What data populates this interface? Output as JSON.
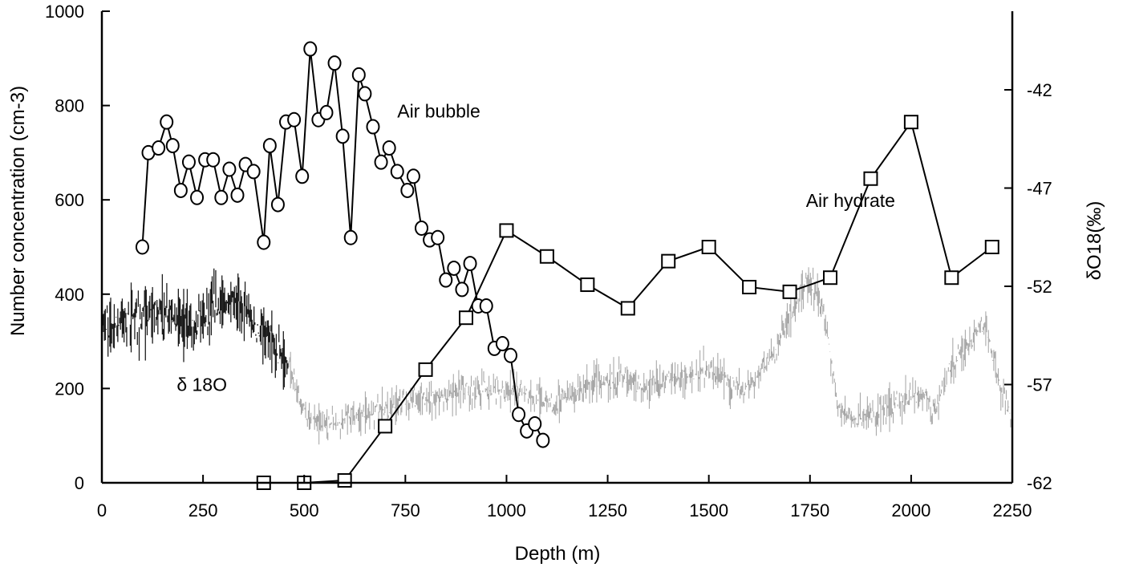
{
  "chart_data": {
    "type": "line",
    "xlabel": "Depth (m)",
    "ylabel": "Number concentration (cm-3)",
    "y2label": "δO18(‰)",
    "xlim": [
      0,
      2250
    ],
    "ylim": [
      0,
      1000
    ],
    "y2lim": [
      -62,
      -38
    ],
    "x_ticks": [
      0,
      250,
      500,
      750,
      1000,
      1250,
      1500,
      1750,
      2000,
      2250
    ],
    "y_ticks": [
      0,
      200,
      400,
      600,
      800,
      1000
    ],
    "y2_ticks": [
      -62,
      -57,
      -52,
      -47,
      -42
    ],
    "grid": false,
    "annotations": [
      {
        "text": "Air bubble",
        "x": 730,
        "y": 775
      },
      {
        "text": "Air hydrate",
        "x": 1740,
        "y": 585
      },
      {
        "text": "δ 18O",
        "x": 185,
        "y": 195
      }
    ],
    "series": [
      {
        "name": "Air bubble",
        "marker": "circle",
        "axis": "left",
        "x": [
          100,
          115,
          140,
          160,
          175,
          195,
          215,
          235,
          255,
          275,
          295,
          315,
          335,
          355,
          375,
          400,
          415,
          435,
          455,
          475,
          495,
          515,
          535,
          555,
          575,
          595,
          615,
          635,
          650,
          670,
          690,
          710,
          730,
          755,
          770,
          790,
          810,
          830,
          850,
          870,
          890,
          910,
          930,
          950,
          970,
          990,
          1010,
          1030,
          1050,
          1070,
          1090
        ],
        "y": [
          500,
          700,
          710,
          765,
          715,
          620,
          680,
          605,
          685,
          685,
          605,
          665,
          610,
          675,
          660,
          510,
          715,
          590,
          765,
          770,
          650,
          920,
          770,
          785,
          890,
          735,
          520,
          865,
          825,
          755,
          680,
          710,
          660,
          620,
          650,
          540,
          515,
          520,
          430,
          455,
          410,
          465,
          375,
          375,
          285,
          295,
          270,
          145,
          110,
          125,
          90
        ]
      },
      {
        "name": "Air hydrate",
        "marker": "square",
        "axis": "left",
        "x": [
          400,
          500,
          600,
          700,
          800,
          900,
          1000,
          1100,
          1200,
          1300,
          1400,
          1500,
          1600,
          1700,
          1800,
          1900,
          2000,
          2100,
          2200
        ],
        "y": [
          0,
          0,
          5,
          120,
          240,
          350,
          535,
          480,
          420,
          370,
          470,
          500,
          415,
          405,
          435,
          645,
          765,
          435,
          500
        ]
      },
      {
        "name": "δ 18O",
        "axis": "right",
        "style": "noisy-profile",
        "x": [
          0,
          20,
          60,
          100,
          140,
          180,
          220,
          260,
          300,
          340,
          380,
          420,
          460,
          500,
          560,
          620,
          680,
          740,
          800,
          860,
          920,
          980,
          1040,
          1100,
          1160,
          1220,
          1280,
          1340,
          1400,
          1460,
          1500,
          1540,
          1580,
          1620,
          1660,
          1700,
          1740,
          1780,
          1820,
          1860,
          1900,
          1940,
          1980,
          2020,
          2060,
          2100,
          2140,
          2180,
          2220,
          2250
        ],
        "y": [
          -54.0,
          -54.0,
          -53.5,
          -53.8,
          -53.2,
          -53.5,
          -54.0,
          -53.3,
          -53.0,
          -52.8,
          -54.2,
          -55.0,
          -56.0,
          -58.5,
          -59.0,
          -58.7,
          -58.3,
          -58.0,
          -57.7,
          -57.5,
          -57.3,
          -57.2,
          -57.4,
          -58.0,
          -57.6,
          -56.8,
          -56.6,
          -57.2,
          -56.8,
          -56.5,
          -56.2,
          -56.7,
          -57.3,
          -56.5,
          -55.5,
          -53.5,
          -51.7,
          -52.8,
          -58.3,
          -58.8,
          -58.6,
          -58.2,
          -57.8,
          -57.5,
          -58.2,
          -56.0,
          -55.0,
          -53.8,
          -57.0,
          -59.0
        ]
      }
    ]
  }
}
